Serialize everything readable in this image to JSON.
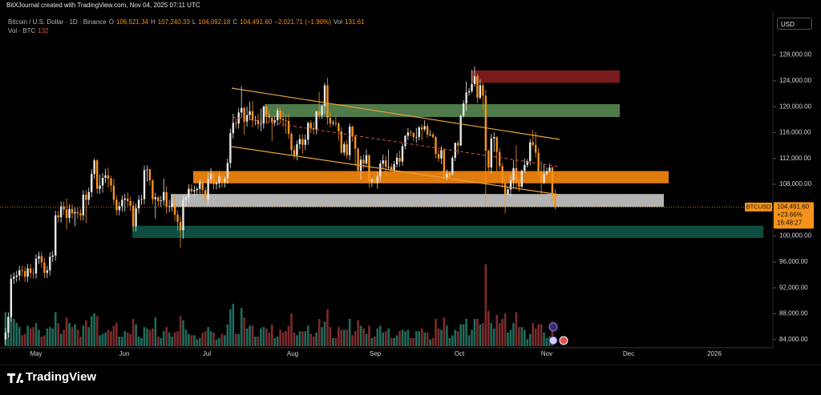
{
  "header": {
    "credit": "BitXJournal created with TradingView.com, Nov 04, 2025 07:11 UTC",
    "currency": "USD",
    "logo": "TradingView"
  },
  "chart_data": {
    "type": "candlestick",
    "title": "Bitcoin / U.S. Dollar · 1D · Binance",
    "legend": [
      {
        "key": "O",
        "value": "106,521.34"
      },
      {
        "key": "H",
        "value": "107,240.33"
      },
      {
        "key": "L",
        "value": "104,092.18"
      },
      {
        "key": "C",
        "value": "104,491.60"
      },
      {
        "value": "−2,021.71 (−1.90%)"
      },
      {
        "key": "Vol"
      }
    ],
    "volume_title": "Vol · BTC",
    "volume_label": "132",
    "price_tag": {
      "symbol": "BTCUSD",
      "price": "104,491.60",
      "change": "+23.66%",
      "countdown": "16:48:27"
    },
    "up_color": "#e8e8e8",
    "down_color": "#f7931a",
    "volume_up_color": "#1f6b5c",
    "volume_down_color": "#7d2b2b",
    "ylim": [
      82980,
      131540
    ],
    "yticks": [
      {
        "value": 84000,
        "label": "84,000.00"
      },
      {
        "value": 88000,
        "label": "88,000.00"
      },
      {
        "value": 92000,
        "label": "92,000.00"
      },
      {
        "value": 96000,
        "label": "96,000.00"
      },
      {
        "value": 100000,
        "label": "100,000.00"
      },
      {
        "value": 104000,
        "label": "104,000.00"
      },
      {
        "value": 108000,
        "label": "108,000.00"
      },
      {
        "value": 112000,
        "label": "112,000.00"
      },
      {
        "value": 116000,
        "label": "116,000.00"
      },
      {
        "value": 120000,
        "label": "120,000.00"
      },
      {
        "value": 124000,
        "label": "124,000.00"
      },
      {
        "value": 128000,
        "label": "128,000.00"
      }
    ],
    "xticks": [
      "May",
      "Jun",
      "Jul",
      "Aug",
      "Sep",
      "Oct",
      "Nov",
      "Dec",
      "2026"
    ],
    "zones": [
      {
        "low": 123700,
        "high": 125600,
        "color": "#7a1c1c"
      },
      {
        "low": 118400,
        "high": 120400,
        "color": "#4f7a4a"
      },
      {
        "low": 108150,
        "high": 110050,
        "color": "#e07b0d"
      },
      {
        "low": 104500,
        "high": 106500,
        "color": "#b3b3b3"
      },
      {
        "low": 99700,
        "high": 101600,
        "color": "#0e4d40"
      }
    ],
    "open": [
      84000,
      85100,
      87500,
      93400,
      93700,
      93900,
      94700,
      94600,
      93700,
      95000,
      94300,
      94200,
      96500,
      96900,
      95900,
      94300,
      94700,
      96800,
      97000,
      103200,
      102900,
      104600,
      104100,
      102800,
      104200,
      103500,
      103700,
      103500,
      103200,
      106400,
      105600,
      106800,
      109600,
      111700,
      107300,
      107800,
      109000,
      109400,
      108900,
      107800,
      105600,
      104000,
      104600,
      105600,
      105800,
      105400,
      104700,
      101500,
      104300,
      105600,
      105700,
      110200,
      110300,
      108600,
      105700,
      106000,
      105400,
      105500,
      106800,
      104500,
      104600,
      104900,
      103300,
      102200,
      100900,
      105600,
      106000,
      107300,
      106900,
      107100,
      107300,
      108400,
      107100,
      105700,
      108800,
      109600,
      108000,
      108200,
      109200,
      108300,
      108900,
      111300,
      115900,
      117500,
      117400,
      119100,
      119800,
      117700,
      118700,
      119300,
      117900,
      117900,
      117300,
      117400,
      120000,
      118800,
      118300,
      117600,
      117900,
      119400,
      118100,
      117900,
      117800,
      115800,
      113300,
      112500,
      114200,
      115000,
      114100,
      114900,
      117500,
      116700,
      116500,
      119300,
      118700,
      120100,
      123300,
      118300,
      117400,
      117500,
      117400,
      116200,
      112900,
      114200,
      112500,
      116900,
      115400,
      113500,
      110100,
      111800,
      111200,
      112500,
      108400,
      108800,
      108200,
      109200,
      111200,
      111700,
      110700,
      110700,
      110200,
      111100,
      112100,
      111500,
      113900,
      115500,
      116000,
      115900,
      115300,
      115300,
      116800,
      116500,
      117000,
      115700,
      115700,
      115300,
      112700,
      112000,
      113300,
      109000,
      109600,
      109600,
      112100,
      114400,
      114000,
      118600,
      120500,
      122200,
      122400,
      123500,
      124700,
      121400,
      123300,
      121700,
      113200,
      110600,
      115100,
      115300,
      113000,
      110800,
      108200,
      106400,
      107200,
      108600,
      110500,
      108400,
      107600,
      110100,
      111000,
      111600,
      114500,
      114100,
      112900,
      110000,
      108300,
      109600,
      110000,
      110600,
      106521.34
    ],
    "high": [
      85800,
      88200,
      94100,
      94400,
      94600,
      95400,
      95400,
      95300,
      95700,
      95700,
      95000,
      97200,
      97600,
      97600,
      96600,
      95400,
      97500,
      97700,
      103900,
      103900,
      105300,
      105300,
      105800,
      104900,
      104900,
      104400,
      104400,
      104200,
      107100,
      107100,
      107500,
      110300,
      112000,
      111900,
      109500,
      109700,
      110400,
      110600,
      109300,
      108900,
      106300,
      105300,
      106300,
      106500,
      106800,
      106100,
      105400,
      105000,
      106300,
      106400,
      110900,
      110900,
      110400,
      108800,
      106700,
      106200,
      106200,
      108900,
      107700,
      105600,
      105600,
      106500,
      104000,
      103000,
      106300,
      106300,
      108000,
      108000,
      107800,
      107600,
      108800,
      108800,
      107500,
      109800,
      110500,
      109800,
      108500,
      109700,
      109700,
      109200,
      112000,
      116600,
      118900,
      118200,
      119800,
      123200,
      120000,
      120000,
      120800,
      120900,
      118600,
      118900,
      119700,
      120200,
      120200,
      119500,
      118500,
      118600,
      119800,
      119800,
      119300,
      118800,
      118900,
      116100,
      114000,
      114800,
      115700,
      115700,
      115700,
      117700,
      117900,
      117700,
      119300,
      122300,
      120300,
      123700,
      124500,
      119200,
      117900,
      118600,
      117600,
      116800,
      114600,
      114800,
      117400,
      117100,
      115700,
      113700,
      112400,
      112600,
      113400,
      112600,
      108900,
      109500,
      109900,
      111700,
      112600,
      112400,
      113400,
      111200,
      111600,
      112800,
      113200,
      114300,
      115600,
      116700,
      116400,
      116100,
      116700,
      117000,
      117300,
      117900,
      117400,
      116400,
      116000,
      115500,
      113300,
      113900,
      113600,
      110300,
      109800,
      112400,
      114500,
      114800,
      118800,
      121000,
      123900,
      122900,
      125700,
      126200,
      125100,
      124200,
      123700,
      122600,
      113400,
      115800,
      116000,
      115400,
      113600,
      111300,
      109200,
      107500,
      109500,
      111700,
      114000,
      109000,
      110300,
      112000,
      111900,
      115000,
      116400,
      116100,
      113600,
      111600,
      111200,
      110600,
      111200,
      110800,
      107240.33
    ],
    "low": [
      83200,
      84300,
      86700,
      92600,
      92900,
      93100,
      93800,
      92900,
      92900,
      93500,
      93400,
      93400,
      95700,
      95100,
      93500,
      93500,
      93900,
      96000,
      96200,
      102100,
      102100,
      103300,
      101000,
      102000,
      102700,
      101500,
      102700,
      102400,
      102400,
      102000,
      104800,
      106000,
      108800,
      106500,
      106500,
      106700,
      108200,
      107500,
      106800,
      104800,
      103200,
      103200,
      103800,
      103800,
      104600,
      103900,
      100700,
      100700,
      103500,
      104800,
      104900,
      108400,
      107800,
      104900,
      102700,
      104600,
      104500,
      104700,
      103400,
      103700,
      103800,
      102300,
      100800,
      98200,
      99600,
      104600,
      105200,
      106100,
      106100,
      106300,
      106500,
      106300,
      105000,
      104900,
      108000,
      107200,
      107200,
      107400,
      107500,
      107500,
      108100,
      110500,
      115100,
      116600,
      116600,
      118300,
      115700,
      116900,
      117900,
      116800,
      117100,
      116500,
      116200,
      116600,
      117300,
      117500,
      114700,
      117000,
      117100,
      117400,
      116900,
      115800,
      115000,
      112500,
      111900,
      111700,
      113400,
      112700,
      113300,
      114100,
      115900,
      115700,
      115700,
      118100,
      118100,
      118900,
      117200,
      116800,
      117100,
      117000,
      114700,
      112700,
      112400,
      111900,
      111700,
      114600,
      110800,
      109300,
      108700,
      110400,
      110900,
      107500,
      107600,
      108100,
      107300,
      108400,
      110400,
      109300,
      110200,
      109900,
      110000,
      110600,
      110700,
      110900,
      113400,
      114800,
      115400,
      114700,
      114400,
      114800,
      114800,
      116200,
      115200,
      115400,
      115100,
      112000,
      111500,
      111100,
      108600,
      108600,
      109100,
      109300,
      111600,
      112600,
      113900,
      118300,
      119300,
      121700,
      122100,
      123100,
      120600,
      121100,
      119600,
      104600,
      109700,
      109700,
      113000,
      110000,
      110200,
      107500,
      103500,
      106400,
      106100,
      107500,
      107500,
      106900,
      107500,
      109700,
      110600,
      110900,
      113800,
      112200,
      109200,
      106300,
      108000,
      109400,
      109900,
      105300,
      104092.18
    ],
    "close": [
      85100,
      87500,
      93400,
      93700,
      93900,
      94700,
      94600,
      93700,
      95000,
      94300,
      94200,
      96500,
      96900,
      95900,
      94300,
      94700,
      96800,
      97000,
      103200,
      102900,
      104600,
      104100,
      102800,
      104200,
      103500,
      103700,
      103500,
      103200,
      106400,
      105600,
      106800,
      109600,
      111700,
      107300,
      107800,
      109000,
      109400,
      108900,
      107800,
      105600,
      104000,
      104600,
      105600,
      105800,
      105400,
      104700,
      101500,
      104300,
      105600,
      105700,
      110200,
      110300,
      108600,
      105700,
      106000,
      105400,
      105500,
      106800,
      104500,
      104600,
      104900,
      103300,
      102200,
      100900,
      105600,
      106000,
      107300,
      106900,
      107100,
      107300,
      108400,
      107100,
      105700,
      108800,
      109600,
      108000,
      108200,
      109200,
      108300,
      108900,
      111300,
      115900,
      117500,
      117400,
      119100,
      119800,
      117700,
      118700,
      119300,
      117900,
      117900,
      117300,
      117400,
      120000,
      118800,
      118300,
      117600,
      117900,
      119400,
      118100,
      117900,
      117800,
      115800,
      113300,
      112500,
      114200,
      115000,
      114100,
      114900,
      117500,
      116700,
      116500,
      119300,
      118700,
      120100,
      123300,
      118300,
      117400,
      117500,
      117400,
      116200,
      112900,
      114200,
      112500,
      116900,
      115400,
      113500,
      110100,
      111800,
      111200,
      112500,
      108400,
      108800,
      108200,
      109200,
      111200,
      111700,
      110700,
      110700,
      110200,
      111100,
      112100,
      111500,
      113900,
      115500,
      116000,
      115900,
      115300,
      115300,
      116800,
      116500,
      117000,
      115700,
      115700,
      115300,
      112700,
      112000,
      113300,
      109000,
      109600,
      109600,
      112100,
      114400,
      114000,
      118600,
      120500,
      122200,
      122400,
      123500,
      124700,
      121400,
      123300,
      121700,
      113200,
      110600,
      115100,
      115300,
      113000,
      110800,
      108200,
      106400,
      107200,
      108600,
      110500,
      108400,
      107600,
      110100,
      111000,
      111600,
      114500,
      114100,
      112900,
      110000,
      108300,
      109600,
      110000,
      110600,
      106500,
      104491.6
    ],
    "volume": [
      25000,
      21000,
      30000,
      20000,
      17000,
      14000,
      8000,
      9000,
      15000,
      13000,
      14000,
      17000,
      12000,
      7000,
      8000,
      13000,
      14000,
      13000,
      25000,
      17000,
      9000,
      12000,
      21000,
      17000,
      14000,
      16000,
      12000,
      7000,
      15000,
      19000,
      14000,
      22000,
      24000,
      22000,
      8000,
      9000,
      10000,
      12000,
      11000,
      15000,
      17000,
      7000,
      7000,
      11000,
      10000,
      9000,
      20000,
      16000,
      7000,
      6000,
      14000,
      13000,
      12000,
      13000,
      21000,
      7000,
      6000,
      11000,
      14000,
      10000,
      7000,
      10000,
      11000,
      22000,
      19000,
      12000,
      9000,
      8000,
      8000,
      5000,
      6000,
      10000,
      11000,
      14000,
      11000,
      10000,
      5000,
      6000,
      9000,
      8000,
      16000,
      27000,
      31000,
      9000,
      9000,
      28000,
      21000,
      13000,
      15000,
      15000,
      7000,
      7000,
      13000,
      14000,
      13000,
      10000,
      16000,
      6000,
      7000,
      12000,
      10000,
      11000,
      15000,
      24000,
      10000,
      8000,
      11000,
      11000,
      11000,
      15000,
      9000,
      7000,
      10000,
      20000,
      14000,
      18000,
      27000,
      14000,
      6000,
      6000,
      14000,
      12000,
      12000,
      12000,
      20000,
      8000,
      11000,
      19000,
      15000,
      13000,
      9000,
      15000,
      6000,
      7000,
      13000,
      15000,
      10000,
      11000,
      13000,
      6000,
      6000,
      8000,
      11000,
      12000,
      11000,
      12000,
      6000,
      6000,
      11000,
      11000,
      13000,
      10000,
      10000,
      5000,
      6000,
      20000,
      13000,
      12000,
      21000,
      15000,
      6000,
      8000,
      12000,
      11000,
      16000,
      16000,
      20000,
      8000,
      12000,
      20000,
      20000,
      16000,
      17000,
      60000,
      26000,
      17000,
      13000,
      23000,
      17000,
      20000,
      24000,
      10000,
      12000,
      17000,
      25000,
      14000,
      14000,
      12000,
      5000,
      9000,
      17000,
      13000,
      16000,
      16000,
      10000,
      6000,
      7000,
      18000,
      131.61
    ]
  }
}
